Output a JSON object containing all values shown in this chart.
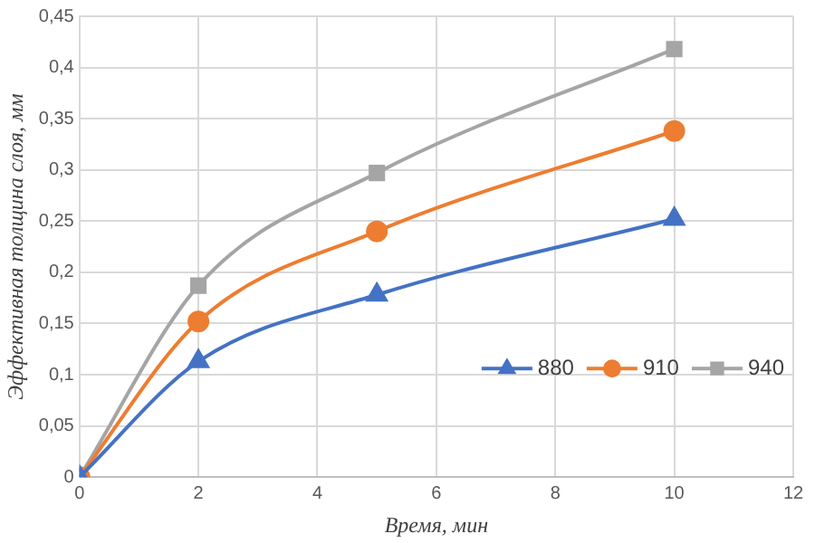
{
  "chart_data": {
    "type": "line",
    "xlabel": "Время, мин",
    "ylabel": "Эффективная толщина слоя, мм",
    "x": [
      0,
      2,
      5,
      10
    ],
    "series": [
      {
        "name": "880",
        "color": "#4472c4",
        "marker": "triangle",
        "values": [
          0,
          0.113,
          0.178,
          0.252
        ]
      },
      {
        "name": "910",
        "color": "#ed7d31",
        "marker": "circle",
        "values": [
          0,
          0.152,
          0.24,
          0.338
        ]
      },
      {
        "name": "940",
        "color": "#a5a5a5",
        "marker": "square",
        "values": [
          0,
          0.187,
          0.297,
          0.418
        ]
      }
    ],
    "xlim": [
      0,
      12
    ],
    "xticks": [
      0,
      2,
      4,
      6,
      8,
      10,
      12
    ],
    "ylim": [
      0,
      0.45
    ],
    "yticks": [
      0,
      {
        "value": 0.05,
        "label": "0,05"
      },
      {
        "value": 0.1,
        "label": "0,1"
      },
      {
        "value": 0.15,
        "label": "0,15"
      },
      {
        "value": 0.2,
        "label": "0,2"
      },
      {
        "value": 0.25,
        "label": "0,25"
      },
      {
        "value": 0.3,
        "label": "0,3"
      },
      {
        "value": 0.35,
        "label": "0,35"
      },
      {
        "value": 0.4,
        "label": "0,4"
      },
      {
        "value": 0.45,
        "label": "0,45"
      }
    ],
    "grid": true,
    "legend": "bottom right",
    "line_style": "solid"
  }
}
